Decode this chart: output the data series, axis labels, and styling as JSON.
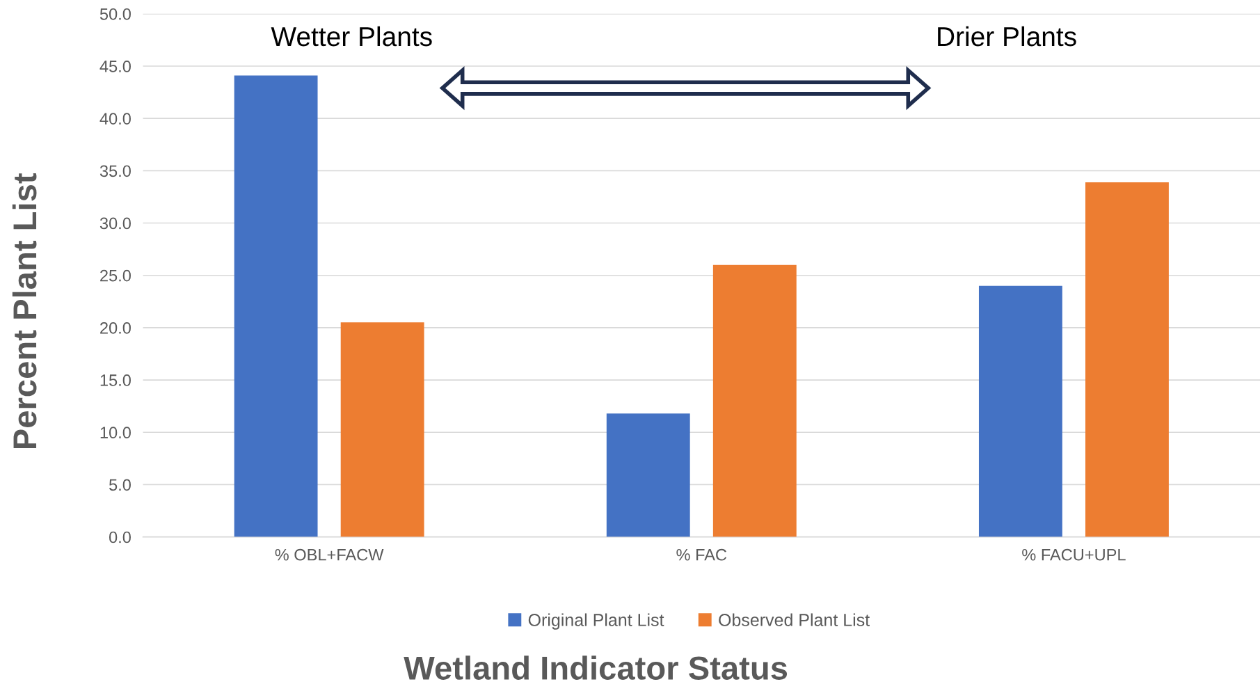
{
  "chart_data": {
    "type": "bar",
    "xlabel": "Wetland Indicator Status",
    "ylabel": "Percent Plant List",
    "categories": [
      "% OBL+FACW",
      "% FAC",
      "% FACU+UPL"
    ],
    "series": [
      {
        "name": "Original Plant List",
        "color": "#4472c4",
        "values": [
          44.1,
          11.8,
          24.0
        ]
      },
      {
        "name": "Observed Plant List",
        "color": "#ed7d31",
        "values": [
          20.5,
          26.0,
          33.9
        ]
      }
    ],
    "ylim": [
      0,
      50
    ],
    "yticks": [
      {
        "value": 0,
        "label": "0.0"
      },
      {
        "value": 5,
        "label": "5.0"
      },
      {
        "value": 10,
        "label": "10.0"
      },
      {
        "value": 15,
        "label": "15.0"
      },
      {
        "value": 20,
        "label": "20.0"
      },
      {
        "value": 25,
        "label": "25.0"
      },
      {
        "value": 30,
        "label": "30.0"
      },
      {
        "value": 35,
        "label": "35.0"
      },
      {
        "value": 40,
        "label": "40.0"
      },
      {
        "value": 45,
        "label": "45.0"
      },
      {
        "value": 50,
        "label": "50.0"
      }
    ],
    "grid": "y",
    "legend": "bottom",
    "annotations": [
      "Wetter Plants",
      "Drier Plants"
    ]
  }
}
